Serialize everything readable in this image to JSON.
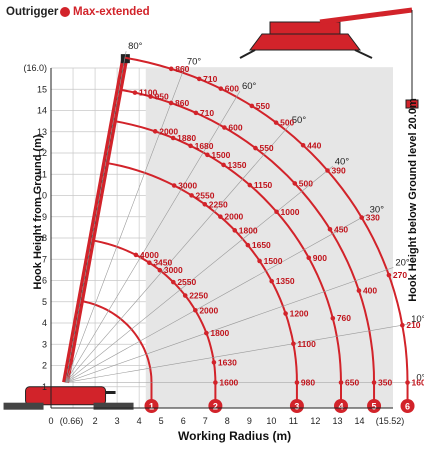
{
  "header": {
    "outrigger_label": "Outrigger",
    "mode_label": "Max-extended",
    "mode_color": "#d2232a"
  },
  "chart_data": {
    "type": "load-chart",
    "xlabel": "Working Radius (m)",
    "ylabel": "Hook Height from Ground (m)",
    "right_label": "Hook Height below Ground level  20.0m",
    "xlim": [
      0,
      15.52
    ],
    "ylim": [
      0,
      16.0
    ],
    "x_ticks": [
      "0",
      "(0.66)",
      "2",
      "3",
      "4",
      "5",
      "6",
      "7",
      "8",
      "9",
      "10",
      "11",
      "12",
      "13",
      "14",
      "(15.52)"
    ],
    "y_ticks": [
      "1",
      "2",
      "3",
      "4",
      "5",
      "6",
      "7",
      "8",
      "9",
      "10",
      "11",
      "12",
      "13",
      "14",
      "15",
      "(16.0)"
    ],
    "boom_angles": [
      "0°",
      "10°",
      "20°",
      "30°",
      "40°",
      "50°",
      "60°",
      "70°",
      "80°"
    ],
    "boom_sections": [
      {
        "id": "1",
        "length_radius": 3.9,
        "loads": []
      },
      {
        "id": "2",
        "length_radius": 6.8,
        "loads": [
          {
            "angle": 0,
            "load": "1600"
          },
          {
            "angle": 8,
            "load": "1630"
          },
          {
            "angle": 20,
            "load": "1800"
          },
          {
            "angle": 30,
            "load": "2000"
          },
          {
            "angle": 37,
            "load": "2250"
          },
          {
            "angle": 44,
            "load": "2550"
          },
          {
            "angle": 51,
            "load": "3000"
          },
          {
            "angle": 56,
            "load": "3450"
          },
          {
            "angle": 62,
            "load": "4000"
          }
        ]
      },
      {
        "id": "3",
        "length_radius": 10.5,
        "loads": [
          {
            "angle": 0,
            "load": "980"
          },
          {
            "angle": 10,
            "load": "1100"
          },
          {
            "angle": 18,
            "load": "1200"
          },
          {
            "angle": 27,
            "load": "1350"
          },
          {
            "angle": 33,
            "load": "1500"
          },
          {
            "angle": 38,
            "load": "1650"
          },
          {
            "angle": 43,
            "load": "1800"
          },
          {
            "angle": 48,
            "load": "2000"
          },
          {
            "angle": 53,
            "load": "2250"
          },
          {
            "angle": 57,
            "load": "2550"
          },
          {
            "angle": 62,
            "load": "3000"
          }
        ]
      },
      {
        "id": "4",
        "length_radius": 12.5,
        "loads": [
          {
            "angle": 0,
            "load": "650"
          },
          {
            "angle": 14,
            "load": "760"
          },
          {
            "angle": 28,
            "load": "900"
          },
          {
            "angle": 40,
            "load": "1000"
          },
          {
            "angle": 48,
            "load": "1150"
          },
          {
            "angle": 55,
            "load": "1350"
          },
          {
            "angle": 59,
            "load": "1500"
          },
          {
            "angle": 63,
            "load": "1680"
          },
          {
            "angle": 67,
            "load": "1880"
          },
          {
            "angle": 71,
            "load": "2000"
          }
        ]
      },
      {
        "id": "5",
        "length_radius": 14.0,
        "loads": [
          {
            "angle": 0,
            "load": "350"
          },
          {
            "angle": 18,
            "load": "400"
          },
          {
            "angle": 31,
            "load": "450"
          },
          {
            "angle": 42,
            "load": "500"
          },
          {
            "angle": 52,
            "load": "550"
          },
          {
            "angle": 59,
            "load": "600"
          },
          {
            "angle": 65,
            "load": "710"
          },
          {
            "angle": 70,
            "load": "860"
          },
          {
            "angle": 74,
            "load": "950"
          },
          {
            "angle": 77,
            "load": "1100"
          }
        ]
      },
      {
        "id": "6",
        "length_radius": 15.52,
        "loads": [
          {
            "angle": 0,
            "load": "160"
          },
          {
            "angle": 10,
            "load": "210"
          },
          {
            "angle": 19,
            "load": "270"
          },
          {
            "angle": 30,
            "load": "330"
          },
          {
            "angle": 40,
            "load": "390"
          },
          {
            "angle": 46,
            "load": "440"
          },
          {
            "angle": 52,
            "load": "500"
          },
          {
            "angle": 57,
            "load": "550"
          },
          {
            "angle": 63,
            "load": "600"
          },
          {
            "angle": 67,
            "load": "710"
          },
          {
            "angle": 72,
            "load": "860"
          }
        ]
      }
    ],
    "colors": {
      "curve": "#d2232a",
      "grid": "#c8c8c8",
      "shade": "#e6e6e6",
      "crane": "#d2232a"
    },
    "grid": true
  }
}
